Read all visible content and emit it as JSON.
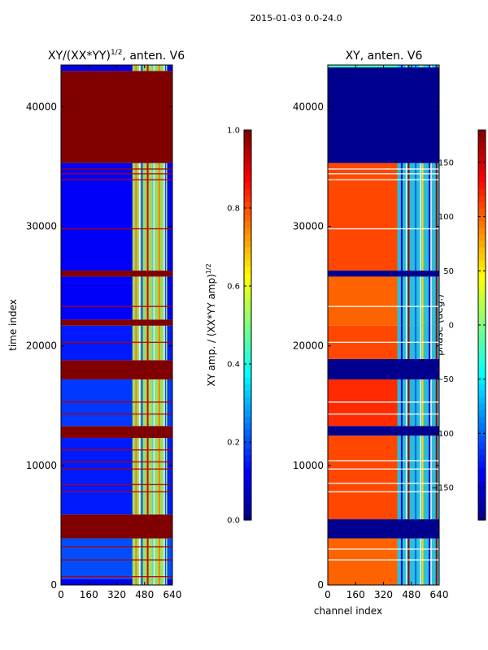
{
  "suptitle": "2015-01-03 0.0-24.0",
  "chart_data": [
    {
      "type": "heatmap",
      "title": "XY/(XX*YY)^{1/2}, anten. V6",
      "title_main": "XY/(XX*YY)",
      "title_exp": "1/2",
      "title_tail": ", anten. V6",
      "xlabel": "",
      "ylabel": "time index",
      "xlim": [
        0,
        640
      ],
      "ylim": [
        0,
        43500
      ],
      "xticks": [
        0,
        160,
        320,
        480,
        640
      ],
      "xtick_labels": [
        "0",
        "160",
        "320",
        "480",
        "640"
      ],
      "yticks": [
        0,
        10000,
        20000,
        30000,
        40000
      ],
      "ytick_labels": [
        "0",
        "10000",
        "20000",
        "30000",
        "40000"
      ],
      "colormap": "jet",
      "colorbar": {
        "label": "XY amp. / (XX*YY amp)^{1/2}",
        "label_main": "XY amp. / (XX*YY amp)",
        "label_exp": "1/2",
        "range": [
          0.0,
          1.0
        ],
        "ticks": [
          0.0,
          0.2,
          0.4,
          0.6,
          0.8,
          1.0
        ],
        "tick_labels": [
          "0.0",
          "0.2",
          "0.4",
          "0.6",
          "0.8",
          "1.0"
        ]
      },
      "base_value": 0.1,
      "rfi_value": 0.55,
      "rfi_channel_range": [
        410,
        610
      ],
      "bands": [
        {
          "from": 0,
          "to": 500,
          "value": 0.1
        },
        {
          "from": 500,
          "to": 3900,
          "value": 0.2
        },
        {
          "from": 3900,
          "to": 5200,
          "value": 1.0
        },
        {
          "from": 5200,
          "to": 5900,
          "value": 1.0
        },
        {
          "from": 5900,
          "to": 12300,
          "value": 0.15
        },
        {
          "from": 12300,
          "to": 13300,
          "value": 1.0
        },
        {
          "from": 13300,
          "to": 17200,
          "value": 0.18
        },
        {
          "from": 17200,
          "to": 18800,
          "value": 1.0
        },
        {
          "from": 18800,
          "to": 21700,
          "value": 0.15
        },
        {
          "from": 21700,
          "to": 22200,
          "value": 1.0
        },
        {
          "from": 22200,
          "to": 25800,
          "value": 0.12
        },
        {
          "from": 25800,
          "to": 26300,
          "value": 1.0
        },
        {
          "from": 26300,
          "to": 35300,
          "value": 0.12
        },
        {
          "from": 35300,
          "to": 43000,
          "value": 1.0
        },
        {
          "from": 43000,
          "to": 43500,
          "value": 0.1
        }
      ],
      "thin_lines": [
        700,
        2100,
        3200,
        7800,
        8400,
        9700,
        10300,
        11300,
        14300,
        15300,
        20300,
        23300,
        29800,
        33900,
        34400,
        34800
      ]
    },
    {
      "type": "heatmap",
      "title": "XY, anten. V6",
      "xlabel": "channel index",
      "ylabel": "",
      "xlim": [
        0,
        640
      ],
      "ylim": [
        0,
        43500
      ],
      "xticks": [
        0,
        160,
        320,
        480,
        640
      ],
      "xtick_labels": [
        "0",
        "160",
        "320",
        "480",
        "640"
      ],
      "yticks": [
        0,
        10000,
        20000,
        30000,
        40000
      ],
      "ytick_labels": [
        "0",
        "10000",
        "20000",
        "30000",
        "40000"
      ],
      "colormap": "jet",
      "colorbar": {
        "label": "phase (deg.)",
        "range": [
          -180,
          180
        ],
        "ticks": [
          -150,
          -100,
          -50,
          0,
          50,
          100,
          150
        ],
        "tick_labels": [
          "−150",
          "−100",
          "−50",
          "0",
          "50",
          "100",
          "150"
        ]
      },
      "base_value": 110,
      "rfi_value": -60,
      "rfi_channel_range": [
        400,
        640
      ],
      "bands": [
        {
          "from": 0,
          "to": 3900,
          "value": 100
        },
        {
          "from": 3900,
          "to": 5500,
          "value": -175
        },
        {
          "from": 5500,
          "to": 12500,
          "value": 110
        },
        {
          "from": 12500,
          "to": 13300,
          "value": -175
        },
        {
          "from": 13300,
          "to": 17200,
          "value": 120
        },
        {
          "from": 17200,
          "to": 18900,
          "value": -175
        },
        {
          "from": 18900,
          "to": 21700,
          "value": 110
        },
        {
          "from": 21700,
          "to": 25800,
          "value": 100
        },
        {
          "from": 25800,
          "to": 26300,
          "value": -175
        },
        {
          "from": 26300,
          "to": 35300,
          "value": 110
        },
        {
          "from": 35300,
          "to": 43300,
          "value": -175
        },
        {
          "from": 43300,
          "to": 43500,
          "value": -20
        }
      ],
      "thin_lines": [
        2100,
        3000,
        7800,
        8500,
        9700,
        10400,
        14300,
        15300,
        20300,
        23300,
        29800,
        33900,
        34400,
        34800
      ]
    }
  ]
}
